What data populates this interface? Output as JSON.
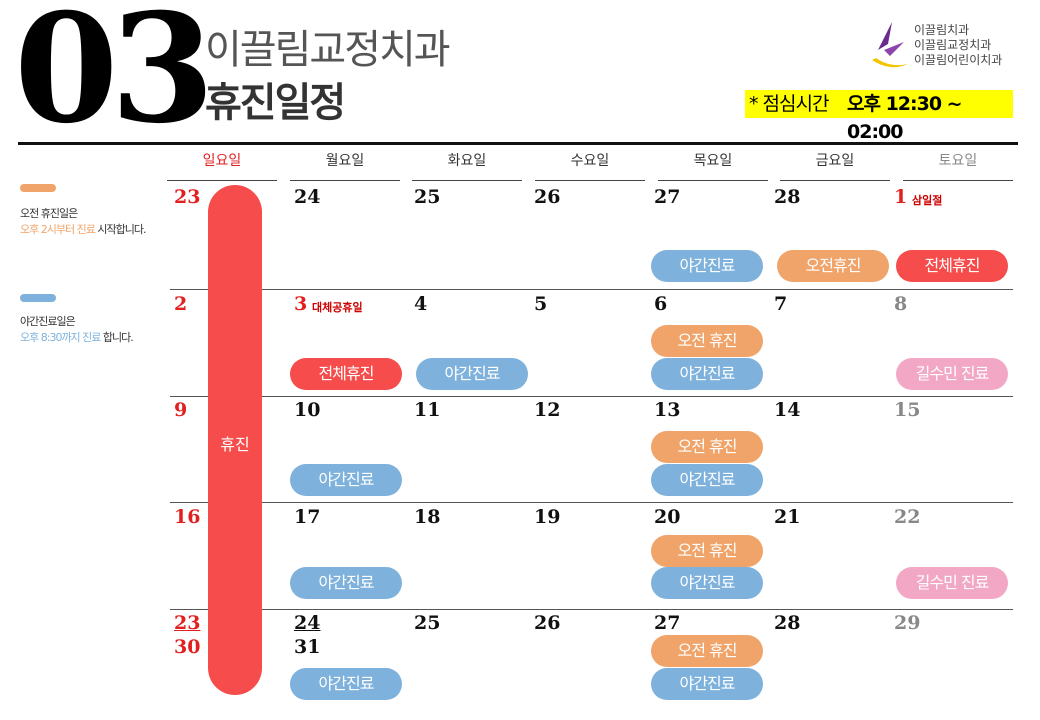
{
  "header": {
    "month": "03",
    "clinic_name": "이끌림교정치과",
    "title": "휴진일정",
    "lunch_label": "* 점심시간",
    "lunch_time": "오후 12:30 ~ 02:00"
  },
  "logo": {
    "lines": [
      "이끌림치과",
      "이끌림교정치과",
      "이끌림어린이치과"
    ]
  },
  "legend": {
    "morning": {
      "title": "오전 휴진일은",
      "highlight": "오후 2시부터 진료",
      "suffix": " 시작합니다.",
      "color": "#f0a46a"
    },
    "night": {
      "title": "야간진료일은",
      "highlight": "오후 8:30까지 진료",
      "suffix": " 합니다.",
      "color": "#7eb2dd"
    }
  },
  "weekdays": [
    "일요일",
    "월요일",
    "화요일",
    "수요일",
    "목요일",
    "금요일",
    "토요일"
  ],
  "sunday_bar_label": "휴진",
  "dates": {
    "r1": [
      "23",
      "24",
      "25",
      "26",
      "27",
      "28",
      "1"
    ],
    "r2": [
      "2",
      "3",
      "4",
      "5",
      "6",
      "7",
      "8"
    ],
    "r3": [
      "9",
      "10",
      "11",
      "12",
      "13",
      "14",
      "15"
    ],
    "r4": [
      "16",
      "17",
      "18",
      "19",
      "20",
      "21",
      "22"
    ],
    "r5": [
      "23",
      "24",
      "25",
      "26",
      "27",
      "28",
      "29"
    ],
    "r5b": [
      "30",
      "31"
    ]
  },
  "notes": {
    "samiljeol": "삼일절",
    "substitute": "대체공휴일"
  },
  "labels": {
    "night": "야간진료",
    "morning_off": "오전휴진",
    "morning_off_spaced": "오전 휴진",
    "full_off": "전체휴진",
    "doctor": "길수민 진료"
  },
  "colors": {
    "night": "#7eb2dd",
    "morning_off": "#f0a46a",
    "full_off": "#f64c4c",
    "doctor": "#f2a8c5",
    "highlight": "#ffff00",
    "holiday": "#e22020"
  }
}
